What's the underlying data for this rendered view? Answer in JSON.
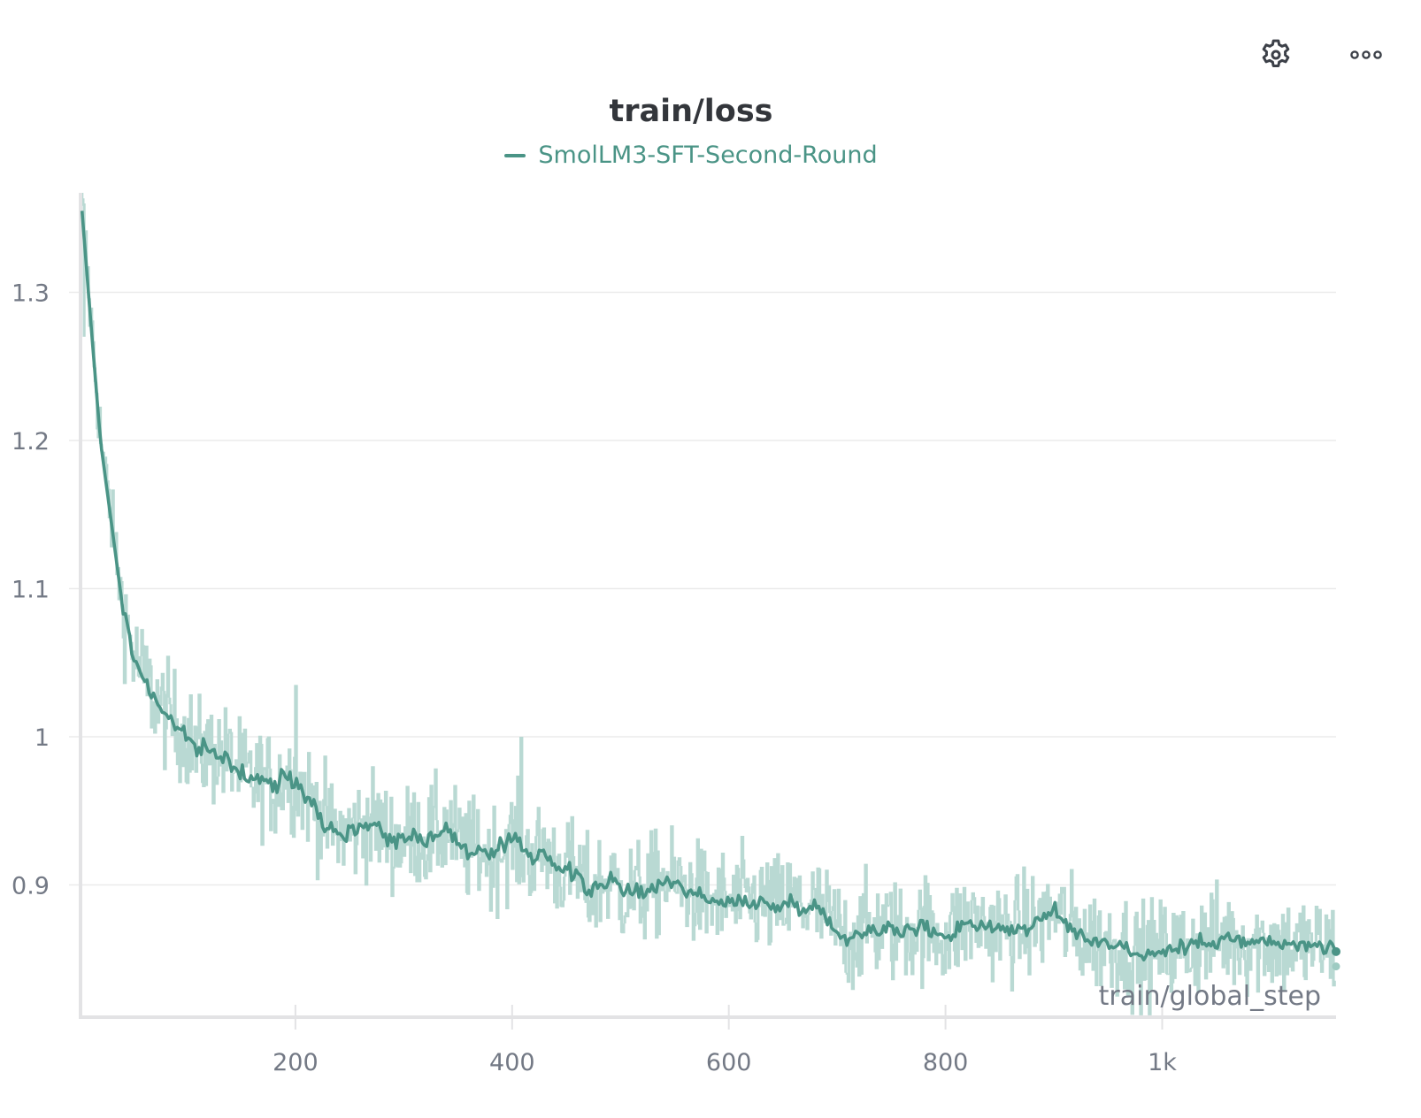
{
  "panel": {
    "title": "train/loss",
    "toolbar": {
      "settings_icon": "gear-icon",
      "more_icon": "more-horizontal-icon"
    }
  },
  "legend": {
    "items": [
      {
        "label": "SmolLM3-SFT-Second-Round",
        "color": "#4a9486"
      }
    ]
  },
  "colors": {
    "line": "#4a9486",
    "raw": "#b9d9d3",
    "grid": "#ebebeb",
    "axis": "#e3e3e5",
    "tick_text": "#737985",
    "title": "#33363b"
  },
  "chart_data": {
    "type": "line",
    "title": "train/loss",
    "xlabel": "train/global_step",
    "ylabel": "",
    "x_ticks": [
      200,
      400,
      600,
      800,
      1000
    ],
    "x_tick_labels": [
      "200",
      "400",
      "600",
      "800",
      "1k"
    ],
    "y_ticks": [
      0.9,
      1.0,
      1.1,
      1.2,
      1.3
    ],
    "y_tick_labels": [
      "0.9",
      "1",
      "1.1",
      "1.2",
      "1.3"
    ],
    "xlim": [
      0,
      1160
    ],
    "ylim": [
      0.81,
      1.367
    ],
    "grid": true,
    "legend_position": "top-center",
    "series": [
      {
        "name": "SmolLM3-SFT-Second-Round",
        "kind": "smoothed",
        "color": "#4a9486",
        "x": [
          3,
          10,
          20,
          30,
          40,
          50,
          60,
          70,
          80,
          90,
          100,
          110,
          120,
          130,
          140,
          150,
          160,
          170,
          180,
          190,
          200,
          210,
          220,
          230,
          240,
          250,
          260,
          270,
          280,
          290,
          300,
          310,
          320,
          330,
          340,
          350,
          360,
          370,
          380,
          390,
          400,
          410,
          420,
          430,
          440,
          450,
          460,
          470,
          480,
          490,
          500,
          520,
          540,
          560,
          580,
          600,
          620,
          640,
          660,
          680,
          700,
          710,
          720,
          740,
          760,
          780,
          800,
          820,
          840,
          860,
          880,
          900,
          920,
          940,
          960,
          980,
          1000,
          1020,
          1040,
          1060,
          1080,
          1100,
          1120,
          1140,
          1160
        ],
        "values": [
          1.355,
          1.29,
          1.2,
          1.145,
          1.09,
          1.055,
          1.04,
          1.025,
          1.015,
          1.008,
          1.0,
          0.99,
          0.99,
          0.988,
          0.983,
          0.975,
          0.97,
          0.972,
          0.965,
          0.975,
          0.97,
          0.962,
          0.95,
          0.94,
          0.935,
          0.935,
          0.94,
          0.942,
          0.937,
          0.93,
          0.93,
          0.935,
          0.93,
          0.935,
          0.938,
          0.928,
          0.922,
          0.925,
          0.918,
          0.925,
          0.93,
          0.925,
          0.918,
          0.925,
          0.912,
          0.91,
          0.906,
          0.895,
          0.9,
          0.905,
          0.895,
          0.895,
          0.903,
          0.898,
          0.89,
          0.887,
          0.89,
          0.885,
          0.888,
          0.885,
          0.87,
          0.862,
          0.868,
          0.872,
          0.868,
          0.872,
          0.865,
          0.875,
          0.872,
          0.87,
          0.872,
          0.882,
          0.868,
          0.862,
          0.86,
          0.852,
          0.855,
          0.858,
          0.862,
          0.865,
          0.86,
          0.862,
          0.858,
          0.86,
          0.856
        ]
      },
      {
        "name": "SmolLM3-SFT-Second-Round (raw)",
        "kind": "raw",
        "color": "#b9d9d3",
        "notes": "noisy per-step values around smoothed line; notable spikes near step 200 (~1.035) and step 408 (~1.0)",
        "spikes": [
          {
            "x": 200,
            "value": 1.035
          },
          {
            "x": 408,
            "value": 1.0
          }
        ]
      }
    ],
    "end_markers": [
      {
        "x": 1160,
        "value": 0.855,
        "kind": "smoothed"
      },
      {
        "x": 1160,
        "value": 0.845,
        "kind": "raw"
      }
    ]
  }
}
